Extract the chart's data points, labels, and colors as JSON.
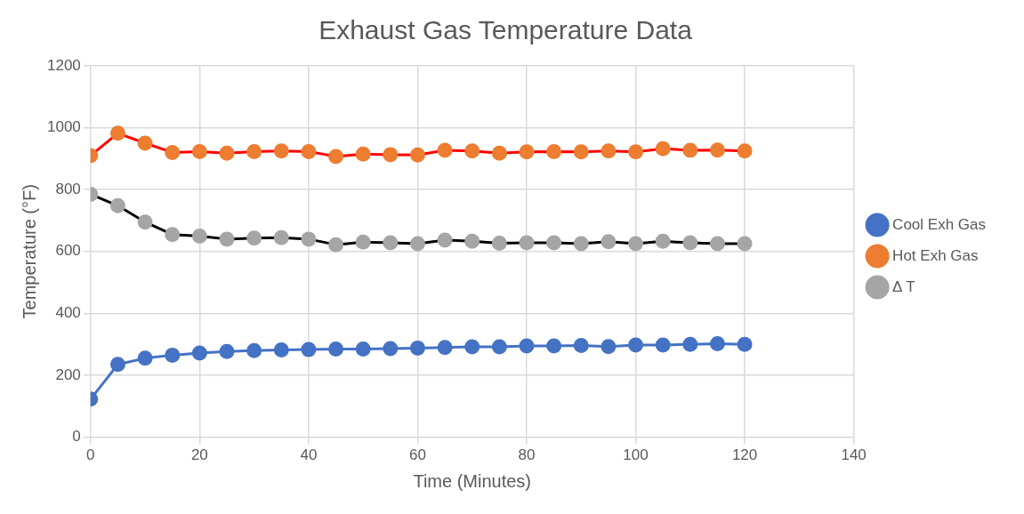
{
  "chart_data": {
    "type": "line",
    "title": "Exhaust Gas Temperature Data",
    "xlabel": "Time (Minutes)",
    "ylabel": "Temperature (°F)",
    "x": [
      0,
      5,
      10,
      15,
      20,
      25,
      30,
      35,
      40,
      45,
      50,
      55,
      60,
      65,
      70,
      75,
      80,
      85,
      90,
      95,
      100,
      105,
      110,
      115,
      120
    ],
    "series": [
      {
        "name": "Cool Exh Gas",
        "color": "#4472c4",
        "colors": [
          "#4472c4",
          "#4472c4",
          "#4472c4",
          "#4472c4",
          "#4472c4",
          "#4472c4",
          "#4472c4",
          "#4472c4",
          "#4472c4",
          "#4472c4",
          "#4472c4",
          "#4472c4",
          "#4472c4",
          "#4472c4",
          "#4472c4",
          "#4472c4",
          "#4472c4",
          "#4472c4",
          "#4472c4",
          "#4472c4",
          "#4472c4",
          "#4472c4",
          "#4472c4",
          "#4472c4",
          "#4472c4"
        ],
        "values": [
          123,
          235,
          255,
          265,
          272,
          277,
          280,
          282,
          283,
          285,
          285,
          286,
          288,
          290,
          292,
          292,
          295,
          295,
          296,
          293,
          298,
          298,
          300,
          302,
          300
        ]
      },
      {
        "name": "Hot Exh Gas",
        "color": "#ff0000",
        "colors": [
          "#ed7d31",
          "#ed7d31",
          "#ed7d31",
          "#ed7d31",
          "#ed7d31",
          "#ed7d31",
          "#ed7d31",
          "#ed7d31",
          "#ed7d31",
          "#ed7d31",
          "#ed7d31",
          "#ed7d31",
          "#ed7d31",
          "#ed7d31",
          "#ed7d31",
          "#ed7d31",
          "#ed7d31",
          "#ed7d31",
          "#ed7d31",
          "#ed7d31",
          "#ed7d31",
          "#ed7d31",
          "#ed7d31",
          "#ed7d31",
          "#ed7d31"
        ],
        "values": [
          910,
          982,
          950,
          920,
          923,
          918,
          923,
          925,
          923,
          907,
          915,
          913,
          912,
          927,
          925,
          918,
          922,
          923,
          922,
          925,
          922,
          932,
          927,
          928,
          925
        ]
      },
      {
        "name": "Δ T",
        "color": "#000000",
        "colors": [
          "#a5a5a5",
          "#a5a5a5",
          "#a5a5a5",
          "#a5a5a5",
          "#a5a5a5",
          "#a5a5a5",
          "#a5a5a5",
          "#a5a5a5",
          "#a5a5a5",
          "#a5a5a5",
          "#a5a5a5",
          "#a5a5a5",
          "#a5a5a5",
          "#a5a5a5",
          "#a5a5a5",
          "#a5a5a5",
          "#a5a5a5",
          "#a5a5a5",
          "#a5a5a5",
          "#a5a5a5",
          "#a5a5a5",
          "#a5a5a5",
          "#a5a5a5",
          "#a5a5a5",
          "#a5a5a5"
        ],
        "values": [
          785,
          748,
          695,
          655,
          650,
          640,
          643,
          645,
          640,
          622,
          630,
          628,
          625,
          637,
          633,
          627,
          628,
          628,
          625,
          632,
          625,
          633,
          628,
          625,
          625
        ]
      }
    ],
    "xlim": [
      0,
      140
    ],
    "xticks": [
      0,
      20,
      40,
      60,
      80,
      100,
      120,
      140
    ],
    "ylim": [
      0,
      1200
    ],
    "yticks": [
      0,
      200,
      400,
      600,
      800,
      1000,
      1200
    ],
    "grid": true,
    "legend": "right",
    "marker": "circle",
    "line_style": "solid"
  }
}
